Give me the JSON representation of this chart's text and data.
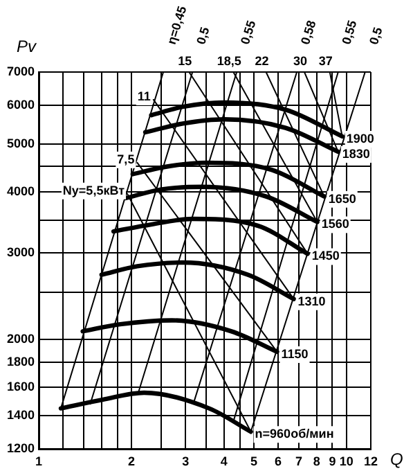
{
  "chart_data": {
    "type": "line",
    "xlabel": "Q",
    "ylabel": "Pv",
    "xlim": [
      1,
      12
    ],
    "ylim": [
      1200,
      7000
    ],
    "log": "xy",
    "grid": true,
    "legend": false,
    "marker": "none",
    "line_style": "solid",
    "xticks": [
      1,
      {
        "value": 1.2,
        "label": null
      },
      {
        "value": 1.4,
        "label": null
      },
      {
        "value": 1.6,
        "label": null
      },
      {
        "value": 1.8,
        "label": null
      },
      2,
      {
        "value": 2.5,
        "label": null
      },
      3,
      {
        "value": 3.5,
        "label": null
      },
      4,
      {
        "value": 4.5,
        "label": null
      },
      5,
      6,
      7,
      8,
      9,
      10,
      12
    ],
    "yticks": [
      1200,
      1400,
      1600,
      1800,
      2000,
      {
        "value": 2500,
        "label": null
      },
      3000,
      {
        "value": 3500,
        "label": null
      },
      4000,
      {
        "value": 4500,
        "label": null
      },
      5000,
      6000,
      7000
    ],
    "series": [
      {
        "name": "1900",
        "color": "#000000",
        "x": [
          2.32,
          2.94,
          4.01,
          6.34,
          9.69
        ],
        "values": [
          5720,
          5950,
          6070,
          5870,
          5180
        ]
      },
      {
        "name": "1830",
        "color": "#000000",
        "x": [
          2.22,
          2.94,
          4.01,
          6.34,
          9.4
        ],
        "values": [
          5280,
          5500,
          5610,
          5390,
          4820
        ]
      },
      {
        "name": "1650",
        "color": "#000000",
        "x": [
          2.02,
          2.57,
          3.51,
          5.71,
          8.47
        ],
        "values": [
          4340,
          4490,
          4580,
          4430,
          3910
        ]
      },
      {
        "name": "1560",
        "color": "#000000",
        "x": [
          1.92,
          2.49,
          3.4,
          5.48,
          8.04
        ],
        "values": [
          3880,
          4040,
          4090,
          3910,
          3470
        ]
      },
      {
        "name": "1450",
        "color": "#000000",
        "x": [
          1.75,
          2.32,
          3.16,
          5.15,
          7.48
        ],
        "values": [
          3320,
          3430,
          3520,
          3410,
          2990
        ]
      },
      {
        "name": "1310",
        "color": "#000000",
        "x": [
          1.6,
          2.09,
          2.94,
          4.79,
          6.74
        ],
        "values": [
          2710,
          2820,
          2870,
          2710,
          2420
        ]
      },
      {
        "name": "1150",
        "color": "#000000",
        "x": [
          1.39,
          1.84,
          2.71,
          4.23,
          5.95
        ],
        "values": [
          2080,
          2150,
          2190,
          2080,
          1890
        ]
      },
      {
        "name": "n=960об/мин",
        "color": "#000000",
        "x": [
          1.18,
          1.61,
          2.2,
          3.58,
          4.89
        ],
        "values": [
          1450,
          1510,
          1560,
          1450,
          1300
        ]
      },
      {
        "name": "η=0,45",
        "color": "#000000",
        "x": [
          1.18,
          2.54
        ],
        "values": [
          1450,
          7000
        ]
      },
      {
        "name": "0,5",
        "color": "#000000",
        "x": [
          1.47,
          3.16
        ],
        "values": [
          1480,
          7000
        ]
      },
      {
        "name": "0,55",
        "color": "#000000",
        "x": [
          2.1,
          4.4
        ],
        "values": [
          1550,
          7000
        ]
      },
      {
        "name": "0,58",
        "color": "#000000",
        "x": [
          3.2,
          6.9
        ],
        "values": [
          1500,
          7000
        ]
      },
      {
        "name": "0,55",
        "color": "#000000",
        "x": [
          4.3,
          9.4
        ],
        "values": [
          1370,
          7000
        ]
      },
      {
        "name": "0,5",
        "color": "#000000",
        "x": [
          4.89,
          11.5
        ],
        "values": [
          1300,
          7000
        ]
      },
      {
        "name": "Ny=5,5кВт",
        "color": "#000000",
        "x": [
          1.94,
          4.89
        ],
        "values": [
          3960,
          1300
        ]
      },
      {
        "name": "7,5",
        "color": "#000000",
        "x": [
          2.09,
          5.95
        ],
        "values": [
          4580,
          1890
        ]
      },
      {
        "name": "11",
        "color": "#000000",
        "x": [
          2.36,
          6.74
        ],
        "values": [
          6150,
          2420
        ]
      },
      {
        "name": "15",
        "color": "#000000",
        "x": [
          3.08,
          7.48
        ],
        "values": [
          7000,
          2990
        ]
      },
      {
        "name": "18,5",
        "color": "#000000",
        "x": [
          4.29,
          8.04
        ],
        "values": [
          7000,
          3470
        ]
      },
      {
        "name": "22",
        "color": "#000000",
        "x": [
          5.48,
          8.47
        ],
        "values": [
          7000,
          3910
        ]
      },
      {
        "name": "30",
        "color": "#000000",
        "x": [
          7.3,
          9.4
        ],
        "values": [
          7000,
          4820
        ]
      },
      {
        "name": "37",
        "color": "#000000",
        "x": [
          8.83,
          9.69
        ],
        "values": [
          7000,
          5180
        ]
      }
    ]
  }
}
